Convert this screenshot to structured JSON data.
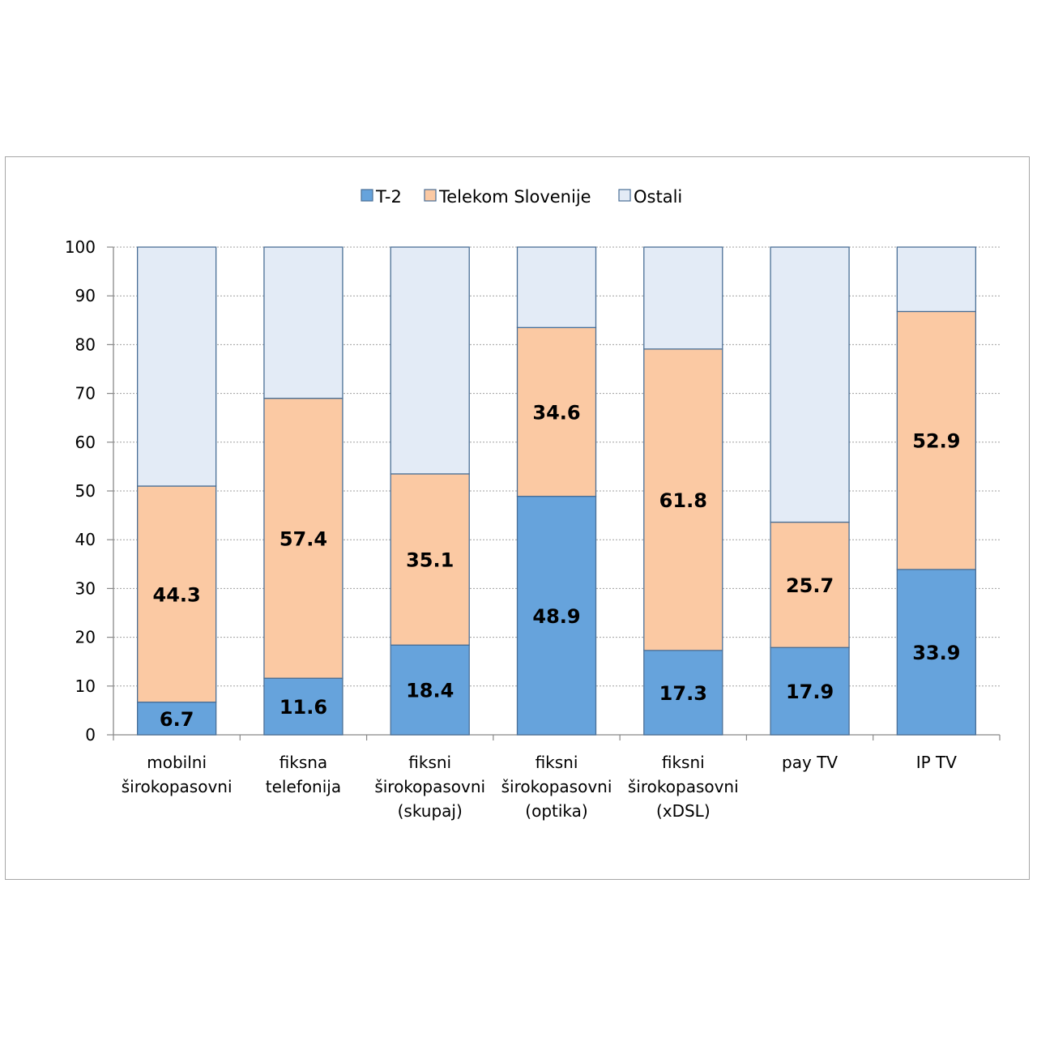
{
  "chart_data": {
    "type": "bar",
    "stacked": true,
    "categories": [
      [
        "mobilni",
        "širokopasovni"
      ],
      [
        "fiksna",
        "telefonija"
      ],
      [
        "fiksni",
        "širokopasovni",
        "(skupaj)"
      ],
      [
        "fiksni",
        "širokopasovni",
        "(optika)"
      ],
      [
        "fiksni",
        "širokopasovni",
        "(xDSL)"
      ],
      [
        "pay TV"
      ],
      [
        "IP TV"
      ]
    ],
    "series": [
      {
        "name": "T-2",
        "color": "#66a3dc",
        "values": [
          6.7,
          11.6,
          18.4,
          48.9,
          17.3,
          17.9,
          33.9
        ]
      },
      {
        "name": "Telekom Slovenije",
        "color": "#fbc9a3",
        "values": [
          44.3,
          57.4,
          35.1,
          34.6,
          61.8,
          25.7,
          52.9
        ]
      },
      {
        "name": "Ostali",
        "color": "#e3ebf6",
        "values": [
          49.0,
          31.0,
          46.5,
          16.5,
          20.9,
          56.4,
          13.2
        ]
      }
    ],
    "data_labels": [
      [
        "6.7",
        "11.6",
        "18.4",
        "48.9",
        "17.3",
        "17.9",
        "33.9"
      ],
      [
        "44.3",
        "57.4",
        "35.1",
        "34.6",
        "61.8",
        "25.7",
        "52.9"
      ]
    ],
    "yticks": [
      "0",
      "10",
      "20",
      "30",
      "40",
      "50",
      "60",
      "70",
      "80",
      "90",
      "100"
    ],
    "ylim": [
      0,
      100
    ],
    "grid": true,
    "legend_position": "top-center",
    "bar_edge_color": "#4a6f96",
    "grid_color": "#a0a0a0"
  }
}
